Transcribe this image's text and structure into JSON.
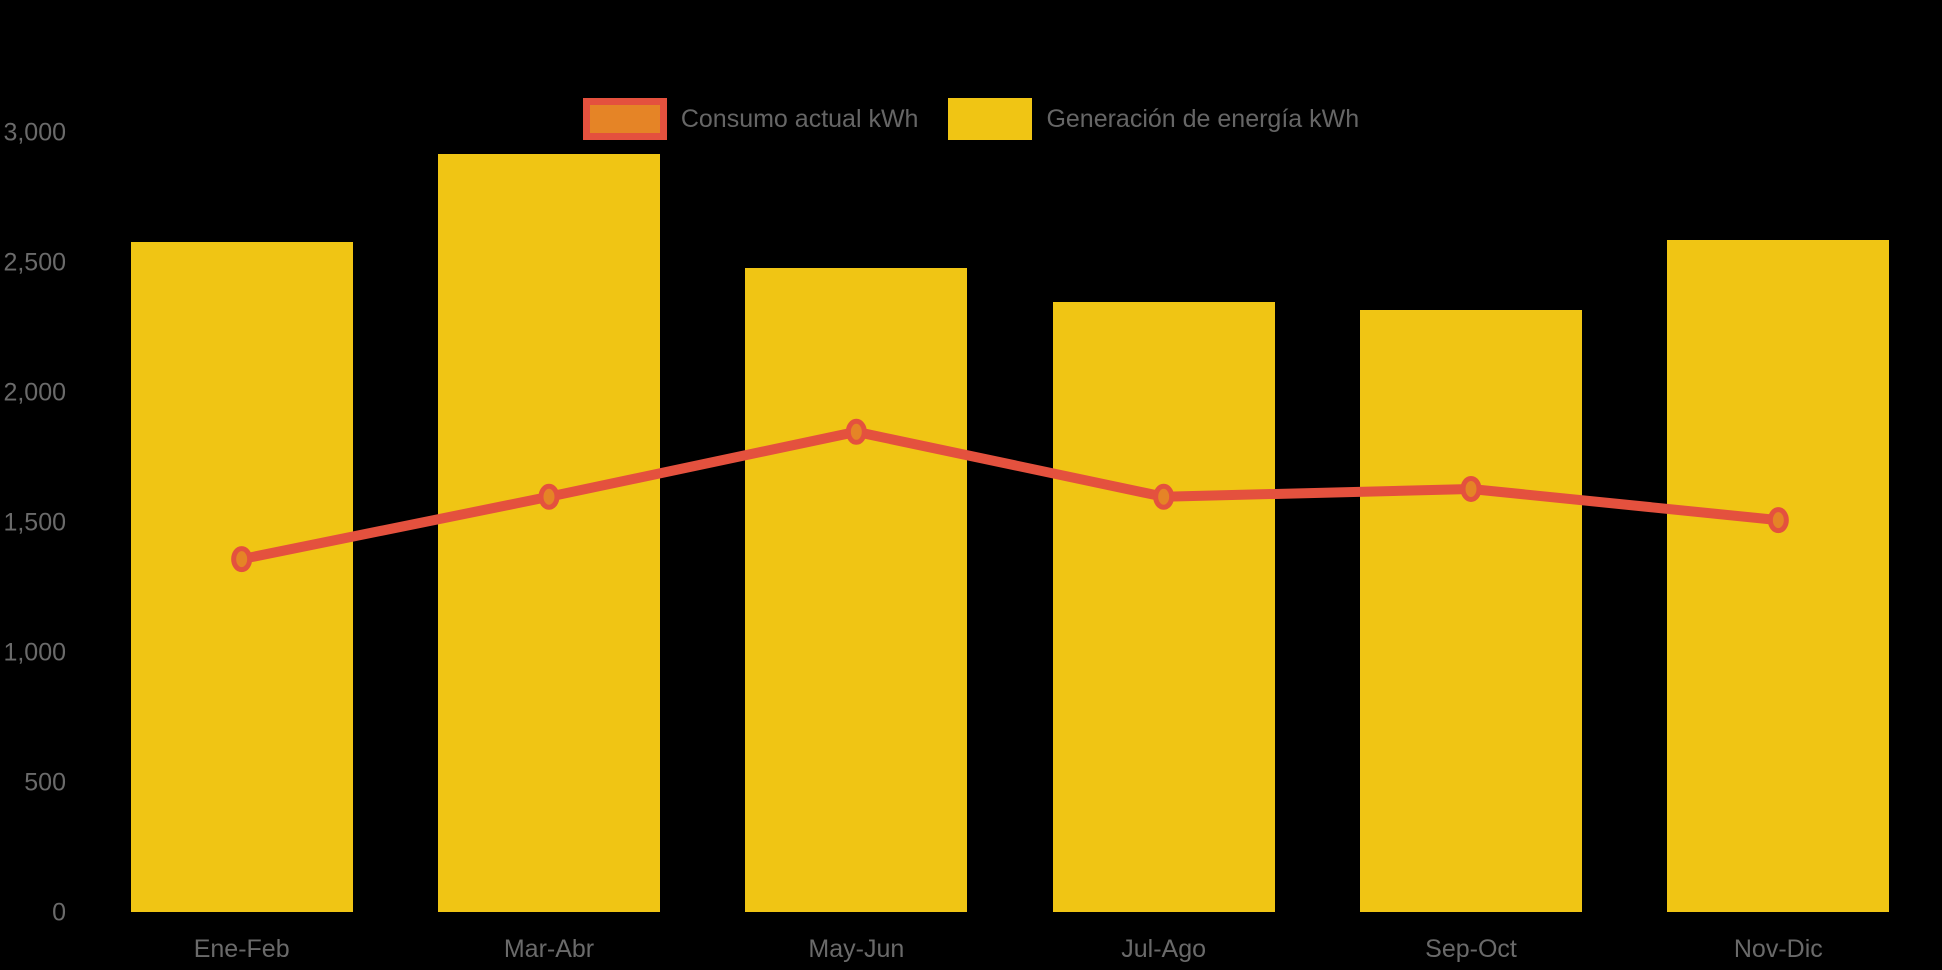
{
  "background_color": "#000000",
  "legend": {
    "position": "top-center",
    "text_color": "#666666",
    "items": [
      {
        "label": "Consumo actual kWh",
        "swatch_fill": "#E58426",
        "swatch_border": "#E4513E"
      },
      {
        "label": "Generación de energía kWh",
        "swatch_fill": "#F0C514",
        "swatch_border": "#F0C514"
      }
    ]
  },
  "chart_data": {
    "type": "bar+line",
    "categories": [
      "Ene-Feb",
      "Mar-Abr",
      "May-Jun",
      "Jul-Ago",
      "Sep-Oct",
      "Nov-Dic"
    ],
    "series": [
      {
        "name": "Consumo actual kWh",
        "type": "line",
        "color": "#E4513E",
        "marker_fill": "#E58426",
        "values": [
          1360,
          1600,
          1850,
          1600,
          1630,
          1510
        ]
      },
      {
        "name": "Generación de energía kWh",
        "type": "bar",
        "color": "#F0C514",
        "values": [
          2580,
          2920,
          2480,
          2350,
          2320,
          2590
        ]
      }
    ],
    "ylabel": "",
    "xlabel": "",
    "ylim": [
      0,
      3000
    ],
    "yticks": [
      {
        "value": 0,
        "label": "0"
      },
      {
        "value": 500,
        "label": "500"
      },
      {
        "value": 1000,
        "label": "1,000"
      },
      {
        "value": 1500,
        "label": "1,500"
      },
      {
        "value": 2000,
        "label": "2,000"
      },
      {
        "value": 2500,
        "label": "2,500"
      },
      {
        "value": 3000,
        "label": "3,000"
      }
    ],
    "grid": false,
    "legend_position": "top",
    "axis_text_color": "#6A6A6A"
  }
}
